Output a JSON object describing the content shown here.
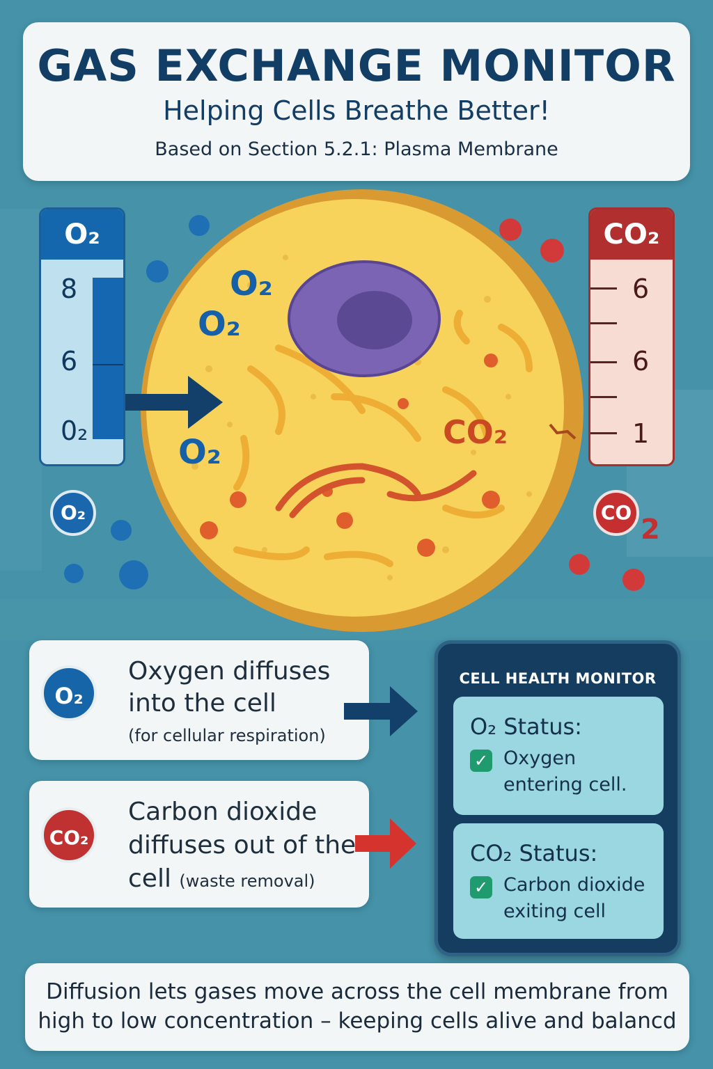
{
  "header": {
    "title": "GAS EXCHANGE MONITOR",
    "subtitle": "Helping Cells Breathe Better!",
    "source": "Based on Section 5.2.1: Plasma Membrane"
  },
  "o2_gauge": {
    "label": "O₂",
    "ticks": [
      "8",
      "6",
      "0₂"
    ]
  },
  "co2_gauge": {
    "label": "CO₂",
    "ticks": [
      "6",
      "6",
      "1"
    ]
  },
  "cell_labels": {
    "o2_a": "O₂",
    "o2_b": "O₂",
    "o2_c": "O₂",
    "co2_inside": "CO₂",
    "o2_bubble": "O₂",
    "co2_bubble_a": "CO",
    "co2_bubble_b": "2"
  },
  "o2_info": {
    "badge": "O₂",
    "line1": "Oxygen diffuses",
    "line2": "into the cell",
    "line3": "(for cellular respiration)"
  },
  "co2_info": {
    "badge": "CO₂",
    "line1": "Carbon dioxide",
    "line2": "diffuses out of the",
    "line3_main": "cell",
    "line3_small": "(waste removal)"
  },
  "monitor": {
    "title": "CELL HEALTH MONITOR",
    "o2_status_label": "O₂ Status:",
    "o2_status_text1": "Oxygen",
    "o2_status_text2": "entering cell.",
    "co2_status_label": "CO₂ Status:",
    "co2_status_text1": "Carbon dioxide",
    "co2_status_text2": "exiting cell",
    "check_icon": "✓"
  },
  "footer": {
    "line1": "Diffusion lets gases move across the cell membrane from",
    "line2": "high to low concentration – keeping cells alive and balancd"
  },
  "colors": {
    "o2_blue": "#1567ad",
    "co2_red": "#b22f2f",
    "cell_yellow": "#f6cf4f",
    "nucleus_purple": "#7c64b5"
  }
}
